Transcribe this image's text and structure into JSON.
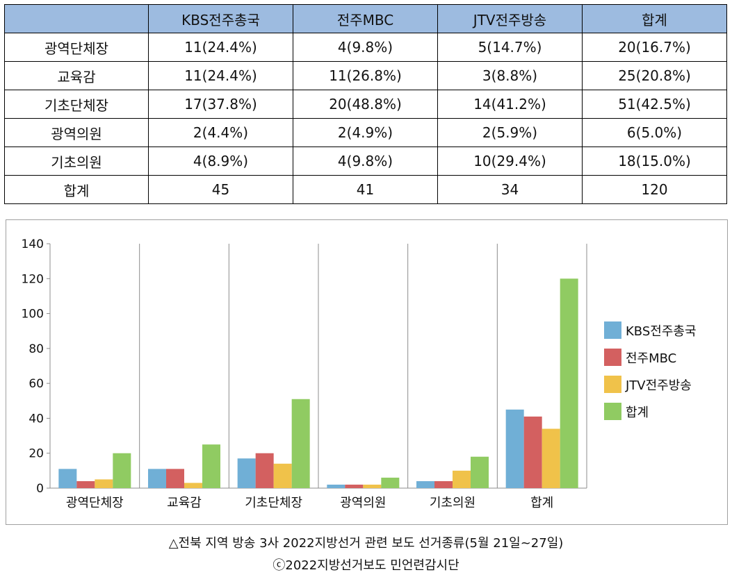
{
  "table": {
    "headers": [
      "",
      "KBS전주총국",
      "전주MBC",
      "JTV전주방송",
      "합계"
    ],
    "rows": [
      [
        "광역단체장",
        "11(24.4%)",
        "4(9.8%)",
        "5(14.7%)",
        "20(16.7%)"
      ],
      [
        "교육감",
        "11(24.4%)",
        "11(26.8%)",
        "3(8.8%)",
        "25(20.8%)"
      ],
      [
        "기초단체장",
        "17(37.8%)",
        "20(48.8%)",
        "14(41.2%)",
        "51(42.5%)"
      ],
      [
        "광역의원",
        "2(4.4%)",
        "2(4.9%)",
        "2(5.9%)",
        "6(5.0%)"
      ],
      [
        "기초의원",
        "4(8.9%)",
        "4(9.8%)",
        "10(29.4%)",
        "18(15.0%)"
      ],
      [
        "합계",
        "45",
        "41",
        "34",
        "120"
      ]
    ]
  },
  "chart_data": {
    "type": "bar",
    "categories": [
      "광역단체장",
      "교육감",
      "기초단체장",
      "광역의원",
      "기초의원",
      "합계"
    ],
    "series": [
      {
        "name": "KBS전주총국",
        "color": "#70afd6",
        "values": [
          11,
          11,
          17,
          2,
          4,
          45
        ]
      },
      {
        "name": "전주MBC",
        "color": "#d36060",
        "values": [
          4,
          11,
          20,
          2,
          4,
          41
        ]
      },
      {
        "name": "JTV전주방송",
        "color": "#f0c24a",
        "values": [
          5,
          3,
          14,
          2,
          10,
          34
        ]
      },
      {
        "name": "합계",
        "color": "#90cb62",
        "values": [
          20,
          25,
          51,
          6,
          18,
          120
        ]
      }
    ],
    "ylim": [
      0,
      140
    ],
    "yticks": [
      0,
      20,
      40,
      60,
      80,
      100,
      120,
      140
    ],
    "legend_position": "right",
    "category_separators": true
  },
  "caption": {
    "line1": "△전북 지역 방송 3사 2022지방선거 관련 보도 선거종류(5월 21일~27일)",
    "line2": "ⓒ2022지방선거보도 민언련감시단"
  }
}
